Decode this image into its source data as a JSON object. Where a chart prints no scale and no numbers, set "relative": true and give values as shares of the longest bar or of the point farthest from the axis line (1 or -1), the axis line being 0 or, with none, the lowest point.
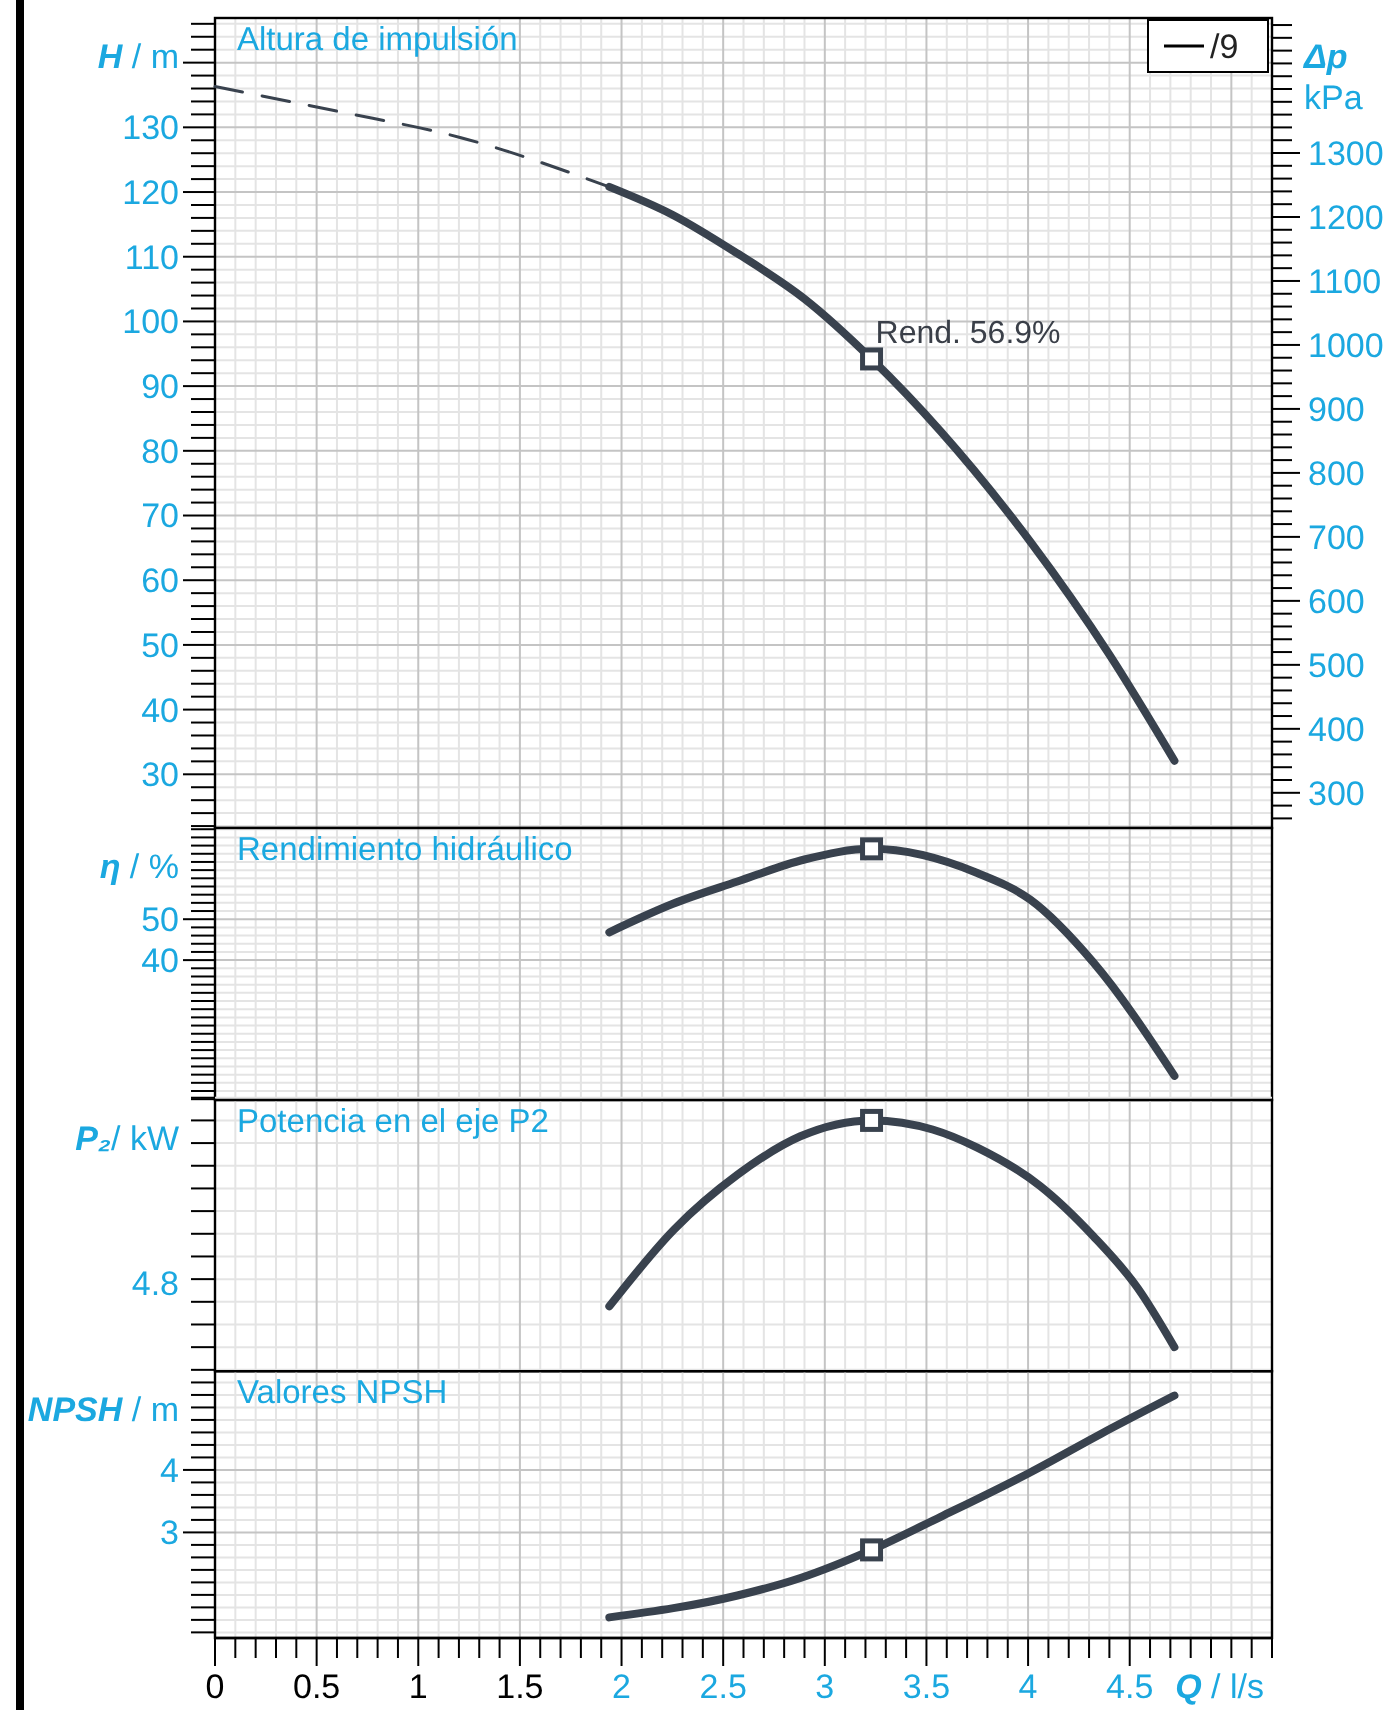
{
  "chart_data": [
    {
      "type": "line",
      "title": "Altura de impulsión",
      "ylabel": "H / m",
      "y2label": "Δp kPa",
      "xlim": [
        0,
        5.2
      ],
      "xticks": [
        0,
        0.5,
        1,
        1.5,
        2,
        2.5,
        3,
        3.5,
        4,
        4.5,
        5
      ],
      "ylim": [
        21.7,
        146.9
      ],
      "yticks": [
        30,
        40,
        50,
        60,
        70,
        80,
        90,
        100,
        110,
        120,
        130,
        {
          "value": 140,
          "label": null
        }
      ],
      "y2lim": [
        245,
        1511
      ],
      "y2ticks": [
        300,
        400,
        500,
        600,
        700,
        800,
        900,
        1000,
        1100,
        1200,
        1300
      ],
      "grid": true,
      "tick_labels": "y",
      "legend": "top right",
      "annotations": [
        {
          "text": "Rend. 56.9%",
          "x": 3.23,
          "y": 94.2
        }
      ],
      "series": [
        {
          "color": "#39424e",
          "line_style": "dashed",
          "x": [
            0,
            0.6,
            1.21,
            1.94
          ],
          "values": [
            136.3,
            132.5,
            128.4,
            120.8
          ]
        },
        {
          "name": "/9",
          "color": "#39424e",
          "x": [
            1.94,
            2.25,
            2.57,
            2.9,
            3.23,
            3.57,
            4.01,
            4.4,
            4.72
          ],
          "values": [
            120.8,
            116.5,
            110.5,
            103.5,
            94.2,
            83,
            66,
            48.5,
            32.1
          ]
        },
        {
          "type": "scatter",
          "marker": "square",
          "color": "#39424e",
          "x": [
            3.23
          ],
          "values": [
            94.2
          ]
        }
      ]
    },
    {
      "type": "line",
      "title": "Rendimiento hidráulico",
      "ylabel": "η / %",
      "xlim": [
        0,
        5.2
      ],
      "xticks": [
        0,
        0.5,
        1,
        1.5,
        2,
        2.5,
        3,
        3.5,
        4,
        4.5,
        5
      ],
      "ylim": [
        5.8,
        72.3
      ],
      "yticks": [
        40,
        50
      ],
      "grid": true,
      "tick_labels": "y",
      "series": [
        {
          "color": "#39424e",
          "x": [
            1.94,
            2.25,
            2.57,
            2.9,
            3.23,
            3.75,
            4.01,
            4.32,
            4.72
          ],
          "values": [
            46.8,
            53.7,
            59.2,
            64.6,
            67.2,
            61.3,
            54.8,
            39.5,
            11.7
          ]
        },
        {
          "type": "scatter",
          "marker": "square",
          "color": "#39424e",
          "x": [
            3.23
          ],
          "values": [
            67.2
          ]
        }
      ]
    },
    {
      "type": "line",
      "title": "Potencia en el eje P2",
      "ylabel": "P₂/ kW",
      "relative": true,
      "xlim": [
        0,
        5.2
      ],
      "xticks": [
        0,
        0.5,
        1,
        1.5,
        2,
        2.5,
        3,
        3.5,
        4,
        4.5,
        5
      ],
      "grid": true,
      "tick_labels": "y",
      "annotations": [
        "4.8"
      ],
      "series": [
        {
          "color": "#39424e",
          "x": [
            1.94,
            2.26,
            2.57,
            2.88,
            3.23,
            3.53,
            3.75,
            4.06,
            4.32,
            4.54,
            4.72
          ],
          "values": [
            0.18,
            0.52,
            0.76,
            0.93,
            1,
            0.96,
            0.88,
            0.71,
            0.49,
            0.26,
            0
          ]
        },
        {
          "type": "scatter",
          "marker": "square",
          "color": "#39424e",
          "x": [
            3.23
          ],
          "values": [
            1
          ]
        }
      ]
    },
    {
      "type": "line",
      "title": "Valores NPSH",
      "ylabel": "NPSH / m",
      "xlabel": "Q / l/s",
      "xlim": [
        0,
        5.2
      ],
      "xticks": [
        0,
        0.5,
        1,
        1.5,
        2,
        2.5,
        3,
        3.5,
        4,
        4.5
      ],
      "ylim": [
        1.31,
        5.58
      ],
      "yticks": [
        3,
        4
      ],
      "grid": true,
      "series": [
        {
          "color": "#39424e",
          "x": [
            1.94,
            2.57,
            2.88,
            3.23,
            3.57,
            4.01,
            4.36,
            4.72
          ],
          "values": [
            1.64,
            1.99,
            2.27,
            2.72,
            3.25,
            3.96,
            4.58,
            5.19
          ]
        },
        {
          "type": "scatter",
          "marker": "square",
          "color": "#39424e",
          "x": [
            3.23
          ],
          "values": [
            2.72
          ]
        }
      ]
    }
  ]
}
